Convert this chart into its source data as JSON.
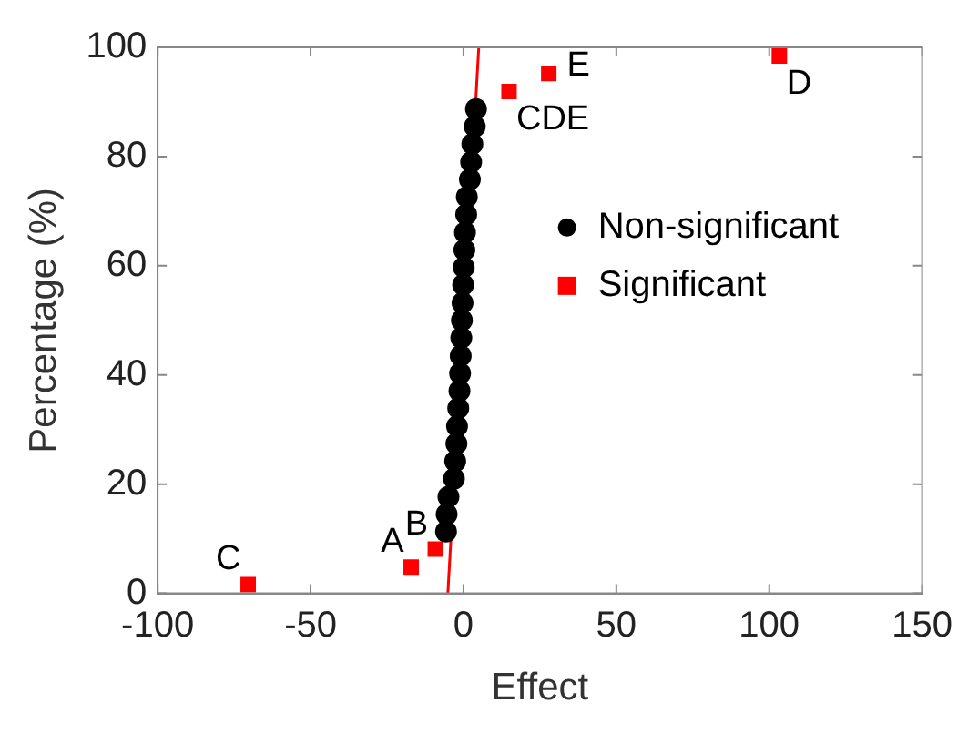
{
  "chart_data": {
    "type": "scatter",
    "xlabel": "Effect",
    "ylabel": "Percentage (%)",
    "xlim": [
      -100,
      150
    ],
    "xticks": [
      -100,
      -50,
      0,
      50,
      100,
      150
    ],
    "ylim": [
      0,
      100
    ],
    "yticks": [
      0,
      20,
      40,
      60,
      80,
      100
    ],
    "grid": false,
    "legend": "right",
    "series": [
      {
        "name": "Non-significant",
        "color": "#000000",
        "marker": "circle",
        "x": [
          -5.7,
          -5.5,
          -4.9,
          -3.1,
          -2.7,
          -2.3,
          -2.1,
          -1.7,
          -1.3,
          -1.1,
          -0.9,
          -0.7,
          -0.5,
          -0.3,
          -0.1,
          0.1,
          0.3,
          0.5,
          0.9,
          1.1,
          2.1,
          2.5,
          2.9,
          3.7,
          4.1
        ],
        "values": [
          11.3,
          14.5,
          17.7,
          21.0,
          24.2,
          27.4,
          30.6,
          33.9,
          37.1,
          40.3,
          43.5,
          46.8,
          50.0,
          53.2,
          56.5,
          59.7,
          62.9,
          66.1,
          69.4,
          72.6,
          75.8,
          79.0,
          82.3,
          85.5,
          88.7
        ]
      },
      {
        "name": "Significant",
        "color": "#ff0000",
        "marker": "square",
        "x": [
          -70.4,
          -17.1,
          -9.2,
          14.9,
          27.9,
          103.3
        ],
        "values": [
          1.6,
          4.8,
          8.1,
          91.9,
          95.2,
          98.4
        ]
      },
      {
        "type": "line",
        "color": "#ff0000",
        "marker": "none",
        "x": [
          -5.1,
          5.0
        ],
        "values": [
          0,
          100
        ]
      }
    ],
    "annotations": [
      {
        "text": "C",
        "x": -70.4,
        "y": 1.6
      },
      {
        "text": "A",
        "x": -17.1,
        "y": 4.8
      },
      {
        "text": "B",
        "x": -9.2,
        "y": 8.1
      },
      {
        "text": "CDE",
        "x": 14.9,
        "y": 91.9
      },
      {
        "text": "E",
        "x": 27.9,
        "y": 95.2
      },
      {
        "text": "D",
        "x": 103.3,
        "y": 98.4
      }
    ]
  }
}
